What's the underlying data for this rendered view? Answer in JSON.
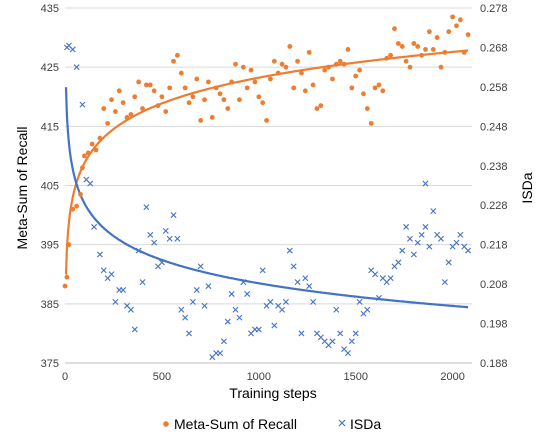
{
  "chart_data": {
    "type": "scatter",
    "title": "",
    "xlabel": "Training steps",
    "ylabel_left": "Meta-Sum of Recall",
    "ylabel_right": "ISDa",
    "xlim": [
      0,
      2100
    ],
    "ylim_left": [
      375,
      435
    ],
    "ylim_right": [
      0.188,
      0.278
    ],
    "x_ticks": [
      0,
      500,
      1000,
      1500,
      2000
    ],
    "y_left_ticks": [
      375,
      385,
      395,
      405,
      415,
      425,
      435
    ],
    "y_right_ticks": [
      0.188,
      0.198,
      0.208,
      0.218,
      0.228,
      0.238,
      0.248,
      0.258,
      0.268,
      0.278
    ],
    "grid": "horizontal",
    "legend_position": "bottom",
    "series": [
      {
        "name": "Meta-Sum of Recall",
        "axis": "left",
        "marker": "circle",
        "color": "#ED7D31",
        "trendline": "log",
        "points": [
          [
            0,
            388
          ],
          [
            10,
            389.5
          ],
          [
            20,
            395
          ],
          [
            40,
            401
          ],
          [
            60,
            401.5
          ],
          [
            80,
            403.5
          ],
          [
            90,
            408
          ],
          [
            100,
            410
          ],
          [
            120,
            410.5
          ],
          [
            140,
            412
          ],
          [
            160,
            411
          ],
          [
            180,
            413
          ],
          [
            200,
            418
          ],
          [
            220,
            415.5
          ],
          [
            240,
            419.5
          ],
          [
            260,
            417.5
          ],
          [
            280,
            421
          ],
          [
            300,
            419
          ],
          [
            320,
            416.5
          ],
          [
            340,
            417
          ],
          [
            360,
            420
          ],
          [
            380,
            422.5
          ],
          [
            400,
            418
          ],
          [
            420,
            422
          ],
          [
            440,
            422
          ],
          [
            460,
            421
          ],
          [
            480,
            418.5
          ],
          [
            500,
            420
          ],
          [
            520,
            417.5
          ],
          [
            540,
            421.5
          ],
          [
            560,
            426
          ],
          [
            580,
            427
          ],
          [
            600,
            424
          ],
          [
            620,
            421.5
          ],
          [
            640,
            419
          ],
          [
            660,
            420
          ],
          [
            680,
            423
          ],
          [
            700,
            416
          ],
          [
            720,
            419.5
          ],
          [
            740,
            422.5
          ],
          [
            760,
            416.5
          ],
          [
            780,
            421.5
          ],
          [
            800,
            420.5
          ],
          [
            820,
            419.5
          ],
          [
            840,
            418
          ],
          [
            860,
            422.5
          ],
          [
            880,
            425.5
          ],
          [
            900,
            419.5
          ],
          [
            920,
            425
          ],
          [
            940,
            421.5
          ],
          [
            960,
            424.5
          ],
          [
            980,
            422.5
          ],
          [
            1000,
            420
          ],
          [
            1020,
            419
          ],
          [
            1040,
            416
          ],
          [
            1060,
            423
          ],
          [
            1080,
            426
          ],
          [
            1100,
            424
          ],
          [
            1120,
            425.5
          ],
          [
            1140,
            425
          ],
          [
            1160,
            428.5
          ],
          [
            1180,
            421.5
          ],
          [
            1200,
            426
          ],
          [
            1220,
            424
          ],
          [
            1240,
            421
          ],
          [
            1260,
            427.5
          ],
          [
            1280,
            422
          ],
          [
            1300,
            418
          ],
          [
            1320,
            418.5
          ],
          [
            1340,
            424.5
          ],
          [
            1360,
            425
          ],
          [
            1380,
            423
          ],
          [
            1400,
            425.5
          ],
          [
            1420,
            426
          ],
          [
            1440,
            425.5
          ],
          [
            1460,
            428
          ],
          [
            1480,
            421.5
          ],
          [
            1500,
            423.5
          ],
          [
            1520,
            424.5
          ],
          [
            1540,
            420.5
          ],
          [
            1560,
            418
          ],
          [
            1580,
            415.5
          ],
          [
            1600,
            421.5
          ],
          [
            1620,
            422
          ],
          [
            1640,
            421
          ],
          [
            1660,
            426.5
          ],
          [
            1680,
            427
          ],
          [
            1700,
            431.5
          ],
          [
            1720,
            429
          ],
          [
            1740,
            428.5
          ],
          [
            1760,
            426
          ],
          [
            1780,
            425
          ],
          [
            1800,
            429
          ],
          [
            1820,
            428.5
          ],
          [
            1840,
            427
          ],
          [
            1860,
            428
          ],
          [
            1880,
            431
          ],
          [
            1900,
            428
          ],
          [
            1920,
            430
          ],
          [
            1940,
            425
          ],
          [
            1960,
            427.5
          ],
          [
            1980,
            431
          ],
          [
            2000,
            433.5
          ],
          [
            2020,
            432
          ],
          [
            2040,
            433
          ],
          [
            2060,
            427.5
          ],
          [
            2080,
            430.5
          ]
        ]
      },
      {
        "name": "ISDa",
        "axis": "right",
        "marker": "x",
        "color": "#4472C4",
        "trendline": "power",
        "points": [
          [
            10,
            0.268
          ],
          [
            20,
            0.2685
          ],
          [
            40,
            0.2675
          ],
          [
            60,
            0.263
          ],
          [
            90,
            0.2535
          ],
          [
            110,
            0.2345
          ],
          [
            130,
            0.2335
          ],
          [
            150,
            0.2225
          ],
          [
            180,
            0.2155
          ],
          [
            200,
            0.2115
          ],
          [
            220,
            0.2095
          ],
          [
            240,
            0.2105
          ],
          [
            260,
            0.2035
          ],
          [
            280,
            0.2065
          ],
          [
            300,
            0.2065
          ],
          [
            320,
            0.2025
          ],
          [
            340,
            0.2015
          ],
          [
            360,
            0.1965
          ],
          [
            380,
            0.2165
          ],
          [
            400,
            0.2085
          ],
          [
            420,
            0.2275
          ],
          [
            440,
            0.2205
          ],
          [
            460,
            0.2185
          ],
          [
            480,
            0.2125
          ],
          [
            500,
            0.2135
          ],
          [
            520,
            0.2215
          ],
          [
            540,
            0.2195
          ],
          [
            560,
            0.2255
          ],
          [
            580,
            0.2195
          ],
          [
            600,
            0.2015
          ],
          [
            620,
            0.1995
          ],
          [
            640,
            0.1955
          ],
          [
            660,
            0.2035
          ],
          [
            680,
            0.2065
          ],
          [
            700,
            0.2125
          ],
          [
            720,
            0.2025
          ],
          [
            740,
            0.2075
          ],
          [
            760,
            0.1895
          ],
          [
            780,
            0.1905
          ],
          [
            800,
            0.1905
          ],
          [
            820,
            0.1935
          ],
          [
            840,
            0.1985
          ],
          [
            860,
            0.2055
          ],
          [
            880,
            0.2015
          ],
          [
            900,
            0.1995
          ],
          [
            920,
            0.2085
          ],
          [
            940,
            0.2055
          ],
          [
            960,
            0.1955
          ],
          [
            980,
            0.1965
          ],
          [
            1000,
            0.1965
          ],
          [
            1020,
            0.2115
          ],
          [
            1040,
            0.2025
          ],
          [
            1060,
            0.2035
          ],
          [
            1080,
            0.1975
          ],
          [
            1100,
            0.2025
          ],
          [
            1120,
            0.2015
          ],
          [
            1140,
            0.2035
          ],
          [
            1160,
            0.2165
          ],
          [
            1180,
            0.2125
          ],
          [
            1200,
            0.2085
          ],
          [
            1220,
            0.1955
          ],
          [
            1240,
            0.2095
          ],
          [
            1260,
            0.2075
          ],
          [
            1280,
            0.2035
          ],
          [
            1300,
            0.1955
          ],
          [
            1320,
            0.1945
          ],
          [
            1340,
            0.1935
          ],
          [
            1360,
            0.1925
          ],
          [
            1380,
            0.1935
          ],
          [
            1400,
            0.2015
          ],
          [
            1420,
            0.1955
          ],
          [
            1440,
            0.1915
          ],
          [
            1460,
            0.1905
          ],
          [
            1480,
            0.1935
          ],
          [
            1500,
            0.1955
          ],
          [
            1520,
            0.2035
          ],
          [
            1540,
            0.2005
          ],
          [
            1560,
            0.2015
          ],
          [
            1580,
            0.2115
          ],
          [
            1600,
            0.2105
          ],
          [
            1620,
            0.2045
          ],
          [
            1640,
            0.2095
          ],
          [
            1660,
            0.2085
          ],
          [
            1680,
            0.2095
          ],
          [
            1700,
            0.2125
          ],
          [
            1720,
            0.2135
          ],
          [
            1740,
            0.2165
          ],
          [
            1760,
            0.2225
          ],
          [
            1780,
            0.2195
          ],
          [
            1800,
            0.2155
          ],
          [
            1820,
            0.2185
          ],
          [
            1840,
            0.2205
          ],
          [
            1860,
            0.2225
          ],
          [
            1880,
            0.2175
          ],
          [
            1900,
            0.2265
          ],
          [
            1920,
            0.2205
          ],
          [
            1940,
            0.2195
          ],
          [
            1960,
            0.2085
          ],
          [
            1980,
            0.2135
          ],
          [
            2000,
            0.2175
          ],
          [
            2020,
            0.2185
          ],
          [
            2040,
            0.2205
          ],
          [
            2060,
            0.2175
          ],
          [
            2080,
            0.2165
          ],
          [
            1860,
            0.2335
          ]
        ]
      }
    ]
  }
}
